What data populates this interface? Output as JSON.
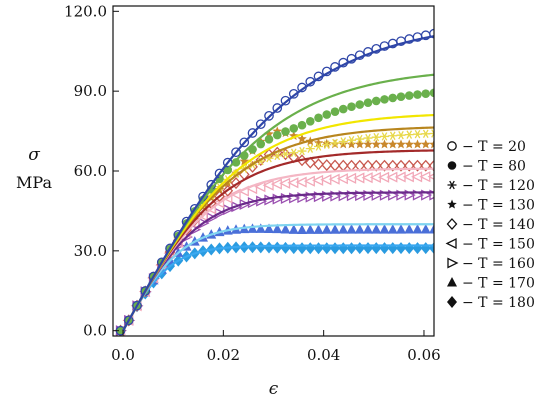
{
  "chart_data": {
    "type": "line",
    "title": "",
    "xlabel": "ϵ",
    "ylabel_symbol": "σ",
    "ylabel_unit": "MPa",
    "xlim": [
      -0.002,
      0.062
    ],
    "ylim": [
      -2,
      122
    ],
    "x_ticks": [
      0.0,
      0.02,
      0.04,
      0.06
    ],
    "x_tick_labels": [
      "0.0",
      "0.02",
      "0.04",
      "0.06"
    ],
    "y_ticks": [
      0,
      30,
      60,
      90,
      120
    ],
    "y_tick_labels": [
      "0.0",
      "30.0",
      "60.0",
      "90.0",
      "120.0"
    ],
    "grid": false,
    "legend_position": "right",
    "series": [
      {
        "name": "T = 20",
        "legend_label": "T = 20",
        "marker": "circle-open",
        "color": "#2f46a8",
        "fit_color": "#2f46a8",
        "plateau": 117,
        "marker_plateau": 118,
        "peak": 0
      },
      {
        "name": "T = 80",
        "legend_label": "T = 80",
        "marker": "circle-filled",
        "color": "#6ab04c",
        "fit_color": "#6ab04c",
        "plateau": 99,
        "marker_plateau": 92,
        "peak": 0
      },
      {
        "name": "T = 120",
        "legend_label": "T = 120",
        "marker": "asterisk",
        "color": "#e8d84a",
        "fit_color": "#f2e600",
        "plateau": 82,
        "marker_plateau": 75,
        "peak": 0
      },
      {
        "name": "T = 130",
        "legend_label": "T = 130",
        "marker": "star",
        "color": "#c9882c",
        "fit_color": "#b8861e",
        "plateau": 77,
        "marker_plateau": 70,
        "peak": 75
      },
      {
        "name": "T = 140",
        "legend_label": "T = 140",
        "marker": "diamond-open",
        "color": "#c85a50",
        "fit_color": "#a32a2a",
        "plateau": 68,
        "marker_plateau": 62,
        "peak": 67
      },
      {
        "name": "T = 150",
        "legend_label": "T = 150",
        "marker": "triangle-left-open",
        "color": "#f2a8b8",
        "fit_color": "#f4b6c4",
        "plateau": 61,
        "marker_plateau": 58,
        "peak": 0
      },
      {
        "name": "T = 160",
        "legend_label": "T = 160",
        "marker": "triangle-right-open",
        "color": "#9a4fb0",
        "fit_color": "#6a2a8a",
        "plateau": 52,
        "marker_plateau": 51,
        "peak": 0
      },
      {
        "name": "T = 170",
        "legend_label": "T = 170",
        "marker": "triangle-filled",
        "color": "#4a6fd8",
        "fit_color": "#7fd4f0",
        "plateau": 40,
        "marker_plateau": 38,
        "peak": 0
      },
      {
        "name": "T = 180",
        "legend_label": "T = 180",
        "marker": "diamond-filled",
        "color": "#2a9be0",
        "fit_color": "#3aa8f0",
        "plateau": 32,
        "marker_plateau": 31,
        "peak": 0
      }
    ]
  }
}
